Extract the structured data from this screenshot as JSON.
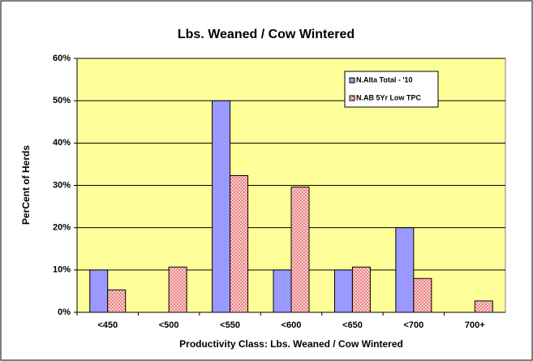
{
  "chart_data": {
    "type": "bar",
    "title": "Lbs. Weaned / Cow Wintered",
    "x_label": "Productivity Class: Lbs. Weaned / Cow Wintered",
    "y_label": "PerCent of Herds",
    "categories": [
      "<450",
      "<500",
      "<550",
      "<600",
      "<650",
      "<700",
      "700+"
    ],
    "series": [
      {
        "name": "N.Alta Total - '10",
        "color": "#9999ff",
        "values": [
          10,
          0,
          50,
          10,
          10,
          20,
          0
        ]
      },
      {
        "name": "N.AB 5Yr Low TPC",
        "color": "#ffcccc",
        "pattern": "dots",
        "values": [
          5.3,
          10.7,
          32.3,
          29.6,
          10.7,
          8,
          2.7
        ]
      }
    ],
    "ylim": [
      0,
      60
    ],
    "yticks": [
      {
        "value": 0,
        "label": "0%"
      },
      {
        "value": 10,
        "label": "10%"
      },
      {
        "value": 20,
        "label": "20%"
      },
      {
        "value": 30,
        "label": "30%"
      },
      {
        "value": 40,
        "label": "40%"
      },
      {
        "value": 50,
        "label": "50%"
      },
      {
        "value": 60,
        "label": "60%"
      }
    ],
    "grid": true,
    "legend": "upper right"
  }
}
